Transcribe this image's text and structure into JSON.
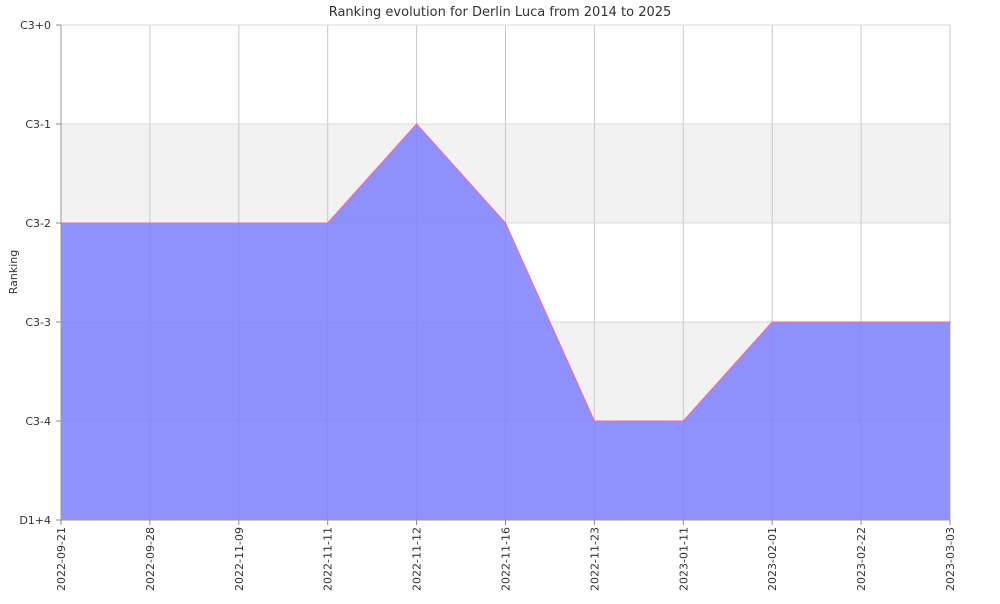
{
  "chart_data": {
    "type": "area",
    "title": "Ranking evolution for Derlin Luca from 2014 to 2025",
    "xlabel": "",
    "ylabel": "Ranking",
    "x": [
      "2022-09-21",
      "2022-09-28",
      "2022-11-09",
      "2022-11-11",
      "2022-11-12",
      "2022-11-16",
      "2022-11-23",
      "2023-01-11",
      "2023-02-01",
      "2023-02-22",
      "2023-03-03"
    ],
    "y_ticks": [
      "C3+0",
      "C3-1",
      "C3-2",
      "C3-3",
      "C3-4",
      "D1+4"
    ],
    "series": [
      {
        "values": [
          "C3-2",
          "C3-2",
          "C3-2",
          "C3-2",
          "C3-1",
          "C3-2",
          "C3-4",
          "C3-4",
          "C3-3",
          "C3-3",
          "C3-3"
        ]
      }
    ],
    "fill_color": "#7f7fff",
    "line_color": "#ff6688",
    "band_color": "#f2f2f2",
    "grid": true
  }
}
